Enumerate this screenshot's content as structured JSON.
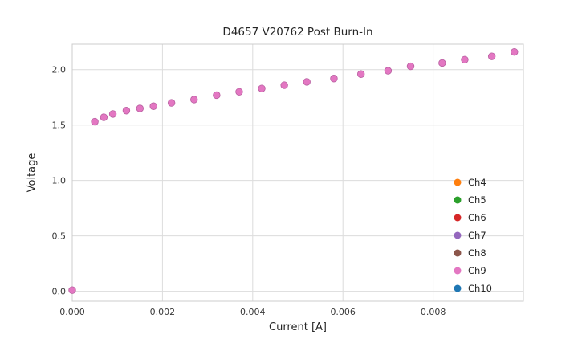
{
  "chart_data": {
    "type": "scatter",
    "title": "D4657 V20762 Post Burn-In",
    "xlabel": "Current [A]",
    "ylabel": "Voltage",
    "xlim": [
      0,
      0.01
    ],
    "ylim": [
      -0.09,
      2.23
    ],
    "grid": true,
    "legend_position": "lower right",
    "style": {
      "background": "#ffffff",
      "grid_color": "#dcdcdc",
      "border_color": "#cccccc",
      "text_color": "#262626"
    },
    "xticks": [
      {
        "v": 0.0,
        "label": "0.000"
      },
      {
        "v": 0.002,
        "label": "0.002"
      },
      {
        "v": 0.004,
        "label": "0.004"
      },
      {
        "v": 0.006,
        "label": "0.006"
      },
      {
        "v": 0.008,
        "label": "0.008"
      }
    ],
    "yticks": [
      {
        "v": 0.0,
        "label": "0.0"
      },
      {
        "v": 0.5,
        "label": "0.5"
      },
      {
        "v": 1.0,
        "label": "1.0"
      },
      {
        "v": 1.5,
        "label": "1.5"
      },
      {
        "v": 2.0,
        "label": "2.0"
      }
    ],
    "points": {
      "note": "All channel series overlap; visible markers are pink (Ch9 drawn on top)",
      "color": "#e377c2",
      "edge_color": "#b85fa0",
      "x": [
        0.0,
        0.0005,
        0.0007,
        0.0009,
        0.0012,
        0.0015,
        0.0018,
        0.0022,
        0.0027,
        0.0032,
        0.0037,
        0.0042,
        0.0047,
        0.0052,
        0.0058,
        0.0064,
        0.007,
        0.0075,
        0.0082,
        0.0087,
        0.0093,
        0.0098
      ],
      "y": [
        0.01,
        1.53,
        1.57,
        1.6,
        1.63,
        1.65,
        1.67,
        1.7,
        1.73,
        1.77,
        1.8,
        1.83,
        1.86,
        1.89,
        1.92,
        1.96,
        1.99,
        2.03,
        2.06,
        2.09,
        2.12,
        2.16
      ]
    },
    "legend": {
      "entries": [
        {
          "label": "Ch4",
          "color": "#ff7f0e"
        },
        {
          "label": "Ch5",
          "color": "#2ca02c"
        },
        {
          "label": "Ch6",
          "color": "#d62728"
        },
        {
          "label": "Ch7",
          "color": "#9467bd"
        },
        {
          "label": "Ch8",
          "color": "#8c564b"
        },
        {
          "label": "Ch9",
          "color": "#e377c2"
        },
        {
          "label": "Ch10",
          "color": "#1f77b4"
        }
      ]
    }
  }
}
